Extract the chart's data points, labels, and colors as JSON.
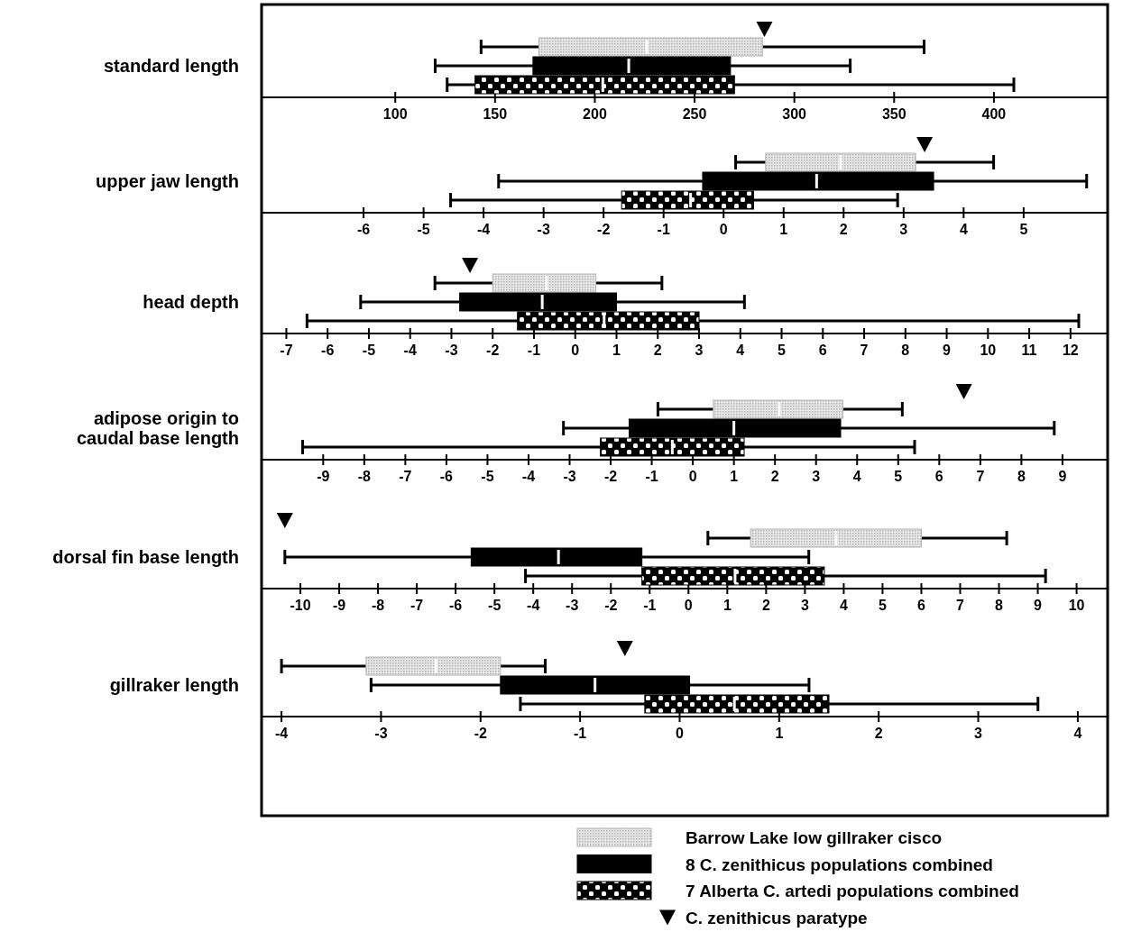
{
  "chart_data": [
    {
      "type": "box",
      "orientation": "horizontal",
      "categories": [
        "standard length"
      ],
      "xlim": [
        33,
        457
      ],
      "xticks": [
        100,
        150,
        200,
        250,
        300,
        350,
        400
      ],
      "marker": "triangle",
      "series": [
        {
          "color": "#b4b4b4",
          "boxes": [
            {
              "low": 143,
              "q1": 172,
              "median": 226,
              "q3": 284,
              "high": 365
            }
          ]
        },
        {
          "color": "#000000",
          "boxes": [
            {
              "low": 120,
              "q1": 169,
              "median": 217,
              "q3": 268,
              "high": 328
            }
          ]
        },
        {
          "color": "#000000",
          "boxes": [
            {
              "low": 126,
              "q1": 140,
              "median": 204,
              "q3": 270,
              "high": 410
            }
          ]
        },
        {
          "type": "scatter",
          "color": "#000000",
          "values": [
            285
          ]
        }
      ]
    },
    {
      "type": "box",
      "orientation": "horizontal",
      "categories": [
        "upper jaw length"
      ],
      "xlim": [
        -7.7,
        6.4
      ],
      "xticks": [
        -6,
        -5,
        -4,
        -3,
        -2,
        -1,
        0,
        1,
        2,
        3,
        4,
        5
      ],
      "marker": "triangle",
      "series": [
        {
          "color": "#b4b4b4",
          "boxes": [
            {
              "low": 0.2,
              "q1": 0.7,
              "median": 1.95,
              "q3": 3.2,
              "high": 4.5
            }
          ]
        },
        {
          "color": "#000000",
          "boxes": [
            {
              "low": -3.75,
              "q1": -0.35,
              "median": 1.55,
              "q3": 3.5,
              "high": 6.05
            }
          ]
        },
        {
          "color": "#000000",
          "boxes": [
            {
              "low": -4.55,
              "q1": -1.7,
              "median": -0.55,
              "q3": 0.5,
              "high": 2.9
            }
          ]
        },
        {
          "type": "scatter",
          "color": "#000000",
          "values": [
            3.35
          ]
        }
      ]
    },
    {
      "type": "box",
      "orientation": "horizontal",
      "categories": [
        "head depth"
      ],
      "xlim": [
        -7.6,
        12.9
      ],
      "xticks": [
        -7,
        -6,
        -5,
        -4,
        -3,
        -2,
        -1,
        0,
        1,
        2,
        3,
        4,
        5,
        6,
        7,
        8,
        9,
        10,
        11,
        12
      ],
      "marker": "triangle",
      "series": [
        {
          "color": "#b4b4b4",
          "boxes": [
            {
              "low": -3.4,
              "q1": -2.0,
              "median": -0.7,
              "q3": 0.5,
              "high": 2.1
            }
          ]
        },
        {
          "color": "#000000",
          "boxes": [
            {
              "low": -5.2,
              "q1": -2.8,
              "median": -0.8,
              "q3": 1.0,
              "high": 4.1
            }
          ]
        },
        {
          "color": "#000000",
          "boxes": [
            {
              "low": -6.5,
              "q1": -1.4,
              "median": 0.7,
              "q3": 3.0,
              "high": 12.2
            }
          ]
        },
        {
          "type": "scatter",
          "color": "#000000",
          "values": [
            -2.55
          ]
        }
      ]
    },
    {
      "type": "box",
      "orientation": "horizontal",
      "categories": [
        "adipose origin to caudal base length"
      ],
      "xlim": [
        -10.5,
        10.1
      ],
      "xticks": [
        -9,
        -8,
        -7,
        -6,
        -5,
        -4,
        -3,
        -2,
        -1,
        0,
        1,
        2,
        3,
        4,
        5,
        6,
        7,
        8,
        9
      ],
      "marker": "triangle",
      "series": [
        {
          "color": "#b4b4b4",
          "boxes": [
            {
              "low": -0.85,
              "q1": 0.5,
              "median": 2.1,
              "q3": 3.65,
              "high": 5.1
            }
          ]
        },
        {
          "color": "#000000",
          "boxes": [
            {
              "low": -3.15,
              "q1": -1.55,
              "median": 1.0,
              "q3": 3.6,
              "high": 8.8
            }
          ]
        },
        {
          "color": "#000000",
          "boxes": [
            {
              "low": -9.5,
              "q1": -2.25,
              "median": -0.5,
              "q3": 1.25,
              "high": 5.4
            }
          ]
        },
        {
          "type": "scatter",
          "color": "#000000",
          "values": [
            6.6
          ]
        }
      ]
    },
    {
      "type": "box",
      "orientation": "horizontal",
      "categories": [
        "dorsal fin base length"
      ],
      "xlim": [
        -11,
        10.8
      ],
      "xticks": [
        -10,
        -9,
        -8,
        -7,
        -6,
        -5,
        -4,
        -3,
        -2,
        -1,
        0,
        1,
        2,
        3,
        4,
        5,
        6,
        7,
        8,
        9,
        10
      ],
      "marker": "triangle",
      "series": [
        {
          "color": "#b4b4b4",
          "boxes": [
            {
              "low": 0.5,
              "q1": 1.6,
              "median": 3.8,
              "q3": 6.0,
              "high": 8.2
            }
          ]
        },
        {
          "color": "#000000",
          "boxes": [
            {
              "low": -10.4,
              "q1": -5.6,
              "median": -3.35,
              "q3": -1.2,
              "high": 3.1
            }
          ]
        },
        {
          "color": "#000000",
          "boxes": [
            {
              "low": -4.2,
              "q1": -1.2,
              "median": 1.2,
              "q3": 3.5,
              "high": 9.2
            }
          ]
        },
        {
          "type": "scatter",
          "color": "#000000",
          "values": [
            -10.4
          ]
        }
      ]
    },
    {
      "type": "box",
      "orientation": "horizontal",
      "categories": [
        "gillraker length"
      ],
      "xlim": [
        -4.2,
        4.3
      ],
      "xticks": [
        -4,
        -3,
        -2,
        -1,
        0,
        1,
        2,
        3,
        4
      ],
      "marker": "triangle",
      "legend": "bottom",
      "series": [
        {
          "name": "Barrow Lake low gillraker cisco",
          "color": "#b4b4b4",
          "boxes": [
            {
              "low": -4.0,
              "q1": -3.15,
              "median": -2.45,
              "q3": -1.8,
              "high": -1.35
            }
          ]
        },
        {
          "name": "8 C. zenithicus populations combined",
          "color": "#000000",
          "boxes": [
            {
              "low": -3.1,
              "q1": -1.8,
              "median": -0.85,
              "q3": 0.1,
              "high": 1.3
            }
          ]
        },
        {
          "name": "7 Alberta C. artedi populations combined",
          "color": "#000000",
          "boxes": [
            {
              "low": -1.6,
              "q1": -0.35,
              "median": 0.55,
              "q3": 1.5,
              "high": 3.6
            }
          ]
        },
        {
          "type": "scatter",
          "name": "C. zenithicus paratype",
          "color": "#000000",
          "values": [
            -0.55
          ]
        }
      ]
    }
  ]
}
